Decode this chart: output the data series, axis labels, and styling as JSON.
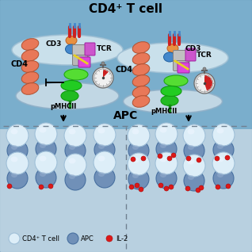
{
  "title": "CD4⁺ T cell",
  "apc_label": "APC",
  "bg_top": "#7ab3cc",
  "bg_bottom": "#b0ccd8",
  "cd4_color": "#e87858",
  "cd3_color": "#4488cc",
  "tcr_color": "#cc55cc",
  "pmhc_color1": "#44cc44",
  "pmhc_color2": "#22aa22",
  "gray_complex": "#c8c8c8",
  "yellow_line": "#e8d020",
  "stopwatch_bg": "#f0f0f0",
  "stopwatch_red": "#cc2020",
  "stopwatch_gray": "#909090",
  "red_bar": "#cc2020",
  "orange_oval": "#e89040",
  "cd3_label": "CD3",
  "tcr_label": "TCR",
  "pmhc_label": "pMHCII",
  "cd4_label": "CD4",
  "il2_color": "#dd2020",
  "il2_label": "IL-2",
  "tcell_label": "CD4⁺ T cell",
  "apc_cell_label": "APC",
  "tcell_fill": "#dceef8",
  "tcell_edge": "#a0bcd0",
  "apc_fill": "#7090b8",
  "apc_edge": "#5070a0",
  "mem_fill": "#d5e8f0",
  "mem_edge": "#a0c0d4",
  "apc_mem_fill": "#ccdde8",
  "apc_mem_edge": "#90b0c8"
}
